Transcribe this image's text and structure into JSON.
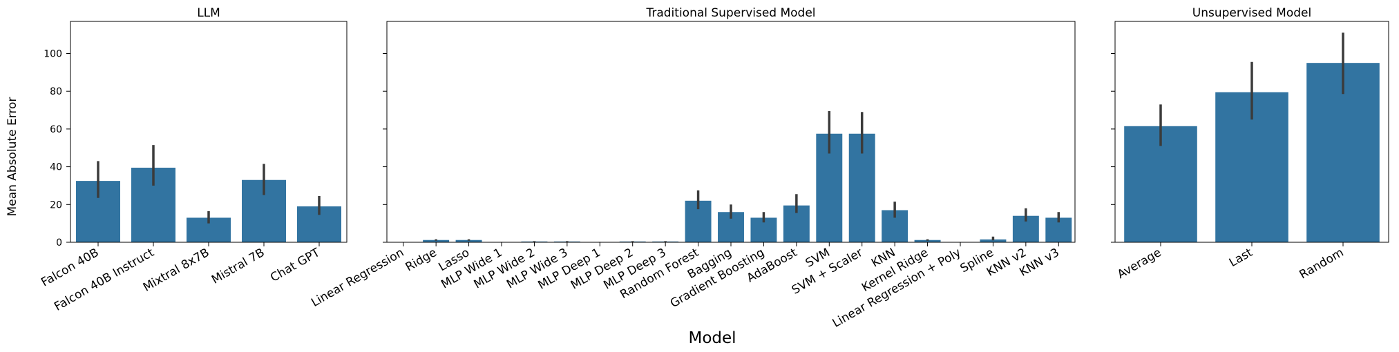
{
  "chart_data": {
    "type": "bar",
    "xlabel": "Model",
    "ylabel": "Mean Absolute Error",
    "ylim": [
      0,
      117
    ],
    "yticks": [
      0,
      20,
      40,
      60,
      80,
      100
    ],
    "bar_color": "#3274a1",
    "error_color": "#3b3b3b",
    "panels": [
      {
        "title": "LLM",
        "categories": [
          "Falcon 40B",
          "Falcon 40B Instruct",
          "Mixtral 8x7B",
          "Mistral 7B",
          "Chat GPT"
        ],
        "values": [
          32.5,
          39.5,
          13.0,
          33.0,
          19.0
        ],
        "err_low": [
          23.5,
          30.0,
          10.0,
          25.0,
          14.5
        ],
        "err_high": [
          43.0,
          51.5,
          16.5,
          41.5,
          24.5
        ]
      },
      {
        "title": "Traditional Supervised Model",
        "categories": [
          "Linear Regression",
          "Ridge",
          "Lasso",
          "MLP Wide 1",
          "MLP Wide 2",
          "MLP Wide 3",
          "MLP Deep 1",
          "MLP Deep 2",
          "MLP Deep 3",
          "Random Forest",
          "Bagging",
          "Gradient Boosting",
          "AdaBoost",
          "SVM",
          "SVM + Scaler",
          "KNN",
          "Kernel Ridge",
          "Linear Regression + Poly",
          "Spline",
          "KNN v2",
          "KNN v3"
        ],
        "values": [
          0.0,
          1.2,
          1.2,
          0.1,
          0.4,
          0.4,
          0.1,
          0.4,
          0.4,
          22.0,
          16.0,
          13.0,
          19.5,
          57.5,
          57.5,
          17.0,
          1.2,
          0.0,
          1.5,
          14.0,
          13.0
        ],
        "err_low": [
          0.0,
          0.8,
          0.8,
          0.0,
          0.2,
          0.2,
          0.0,
          0.2,
          0.2,
          17.5,
          12.5,
          10.5,
          15.5,
          47.0,
          47.0,
          13.0,
          0.8,
          0.0,
          1.0,
          11.0,
          10.5
        ],
        "err_high": [
          0.0,
          1.6,
          1.6,
          0.2,
          0.6,
          0.6,
          0.2,
          0.6,
          0.6,
          27.5,
          20.0,
          16.0,
          25.5,
          69.5,
          69.0,
          21.5,
          1.6,
          0.0,
          3.0,
          18.0,
          16.0
        ]
      },
      {
        "title": "Unsupervised Model",
        "categories": [
          "Average",
          "Last",
          "Random"
        ],
        "values": [
          61.5,
          79.5,
          95.0
        ],
        "err_low": [
          51.0,
          65.0,
          78.5
        ],
        "err_high": [
          73.0,
          95.5,
          111.0
        ]
      }
    ]
  }
}
